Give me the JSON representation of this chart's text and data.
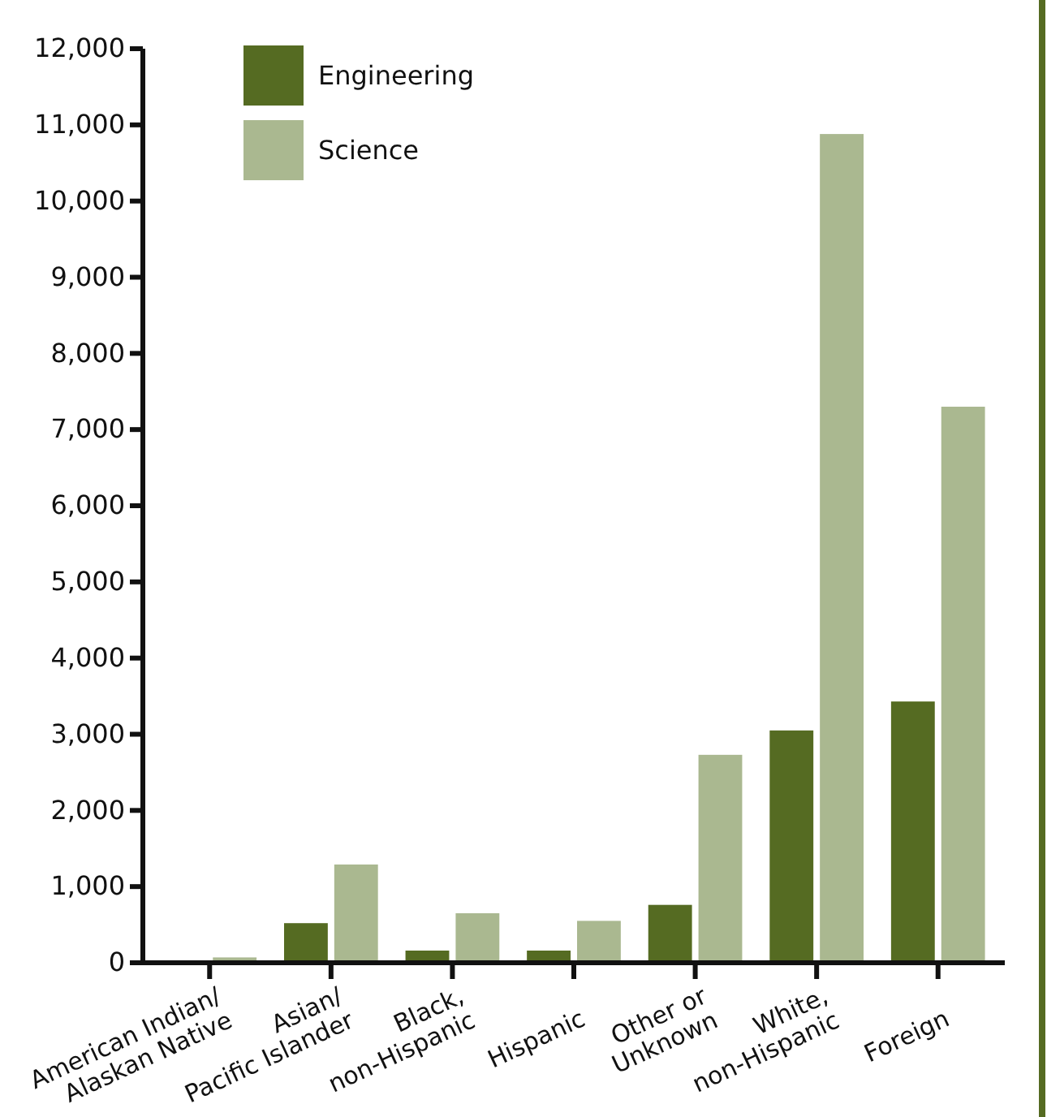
{
  "chart_data": {
    "type": "bar",
    "categories": [
      "American Indian/\nAlaskan Native",
      "Asian/\nPacific Islander",
      "Black,\nnon-Hispanic",
      "Hispanic",
      "Other or\nUnknown",
      "White,\nnon-Hispanic",
      "Foreign"
    ],
    "series": [
      {
        "name": "Engineering",
        "color": "#556b22",
        "values": [
          20,
          520,
          160,
          160,
          760,
          3050,
          3430
        ]
      },
      {
        "name": "Science",
        "color": "#aab890",
        "values": [
          70,
          1290,
          650,
          550,
          2730,
          10880,
          7300
        ]
      }
    ],
    "ylim": [
      0,
      12000
    ],
    "yticks": [
      {
        "value": 0,
        "label": "0"
      },
      {
        "value": 1000,
        "label": "1,000"
      },
      {
        "value": 2000,
        "label": "2,000"
      },
      {
        "value": 3000,
        "label": "3,000"
      },
      {
        "value": 4000,
        "label": "4,000"
      },
      {
        "value": 5000,
        "label": "5,000"
      },
      {
        "value": 6000,
        "label": "6,000"
      },
      {
        "value": 7000,
        "label": "7,000"
      },
      {
        "value": 8000,
        "label": "8,000"
      },
      {
        "value": 9000,
        "label": "9,000"
      },
      {
        "value": 10000,
        "label": "10,000"
      },
      {
        "value": 11000,
        "label": "11,000"
      },
      {
        "value": 12000,
        "label": "12,000"
      }
    ],
    "legend": "top left",
    "grid": false
  }
}
